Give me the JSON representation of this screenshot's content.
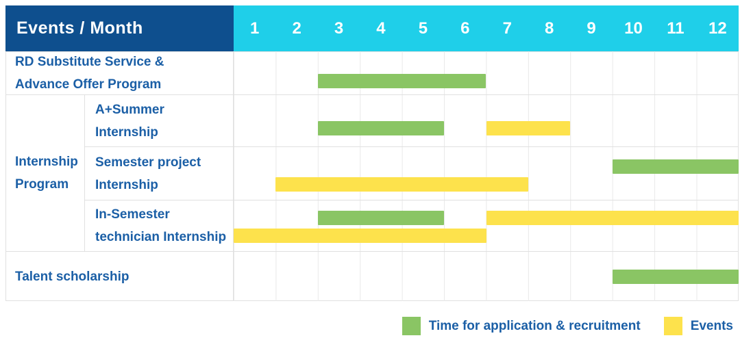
{
  "colors": {
    "header_bg": "#0e4f8e",
    "months_bg": "#1fcfe9",
    "application": "#8ac564",
    "events": "#fde24c",
    "label_text": "#1b5fa6",
    "grid_line": "#e0e0e0"
  },
  "header": {
    "label": "Events / Month",
    "months": [
      "1",
      "2",
      "3",
      "4",
      "5",
      "6",
      "7",
      "8",
      "9",
      "10",
      "11",
      "12"
    ]
  },
  "group": {
    "label_lines": [
      "Internship",
      "Program"
    ]
  },
  "rows": [
    {
      "label_lines": [
        "RD Substitute Service &",
        "Advance Offer Program"
      ]
    },
    {
      "label_lines": [
        "A+Summer",
        "Internship"
      ]
    },
    {
      "label_lines": [
        "Semester project",
        "Internship"
      ]
    },
    {
      "label_lines": [
        "In-Semester",
        "technician Internship"
      ]
    },
    {
      "label_lines": [
        "Talent scholarship"
      ]
    }
  ],
  "legend": [
    {
      "label": "Time for application & recruitment",
      "color_key": "application"
    },
    {
      "label": "Events",
      "color_key": "events"
    }
  ],
  "chart_data": {
    "type": "bar",
    "subtype": "gantt-timeline",
    "title": "Events / Month",
    "xlabel": "Month",
    "x_ticks": [
      1,
      2,
      3,
      4,
      5,
      6,
      7,
      8,
      9,
      10,
      11,
      12
    ],
    "x_range": [
      1,
      12
    ],
    "legend_entries": [
      "Time for application & recruitment",
      "Events"
    ],
    "rows": [
      {
        "group": "",
        "label": "RD Substitute Service & Advance Offer Program",
        "bars": [
          {
            "category": "application",
            "series": "Time for application & recruitment",
            "start_month": 3,
            "end_month": 6,
            "line": 0
          }
        ]
      },
      {
        "group": "Internship Program",
        "label": "A+Summer Internship",
        "bars": [
          {
            "category": "application",
            "series": "Time for application & recruitment",
            "start_month": 3,
            "end_month": 5,
            "line": 0
          },
          {
            "category": "events",
            "series": "Events",
            "start_month": 7,
            "end_month": 8,
            "line": 0
          }
        ]
      },
      {
        "group": "Internship Program",
        "label": "Semester project Internship",
        "bars": [
          {
            "category": "application",
            "series": "Time for application & recruitment",
            "start_month": 10,
            "end_month": 12,
            "line": 0
          },
          {
            "category": "events",
            "series": "Events",
            "start_month": 2,
            "end_month": 7,
            "line": 1
          }
        ]
      },
      {
        "group": "Internship Program",
        "label": "In-Semester technician Internship",
        "bars": [
          {
            "category": "application",
            "series": "Time for application & recruitment",
            "start_month": 3,
            "end_month": 5,
            "line": 0
          },
          {
            "category": "events",
            "series": "Events",
            "start_month": 7,
            "end_month": 12,
            "line": 0
          },
          {
            "category": "events",
            "series": "Events",
            "start_month": 1,
            "end_month": 6,
            "line": 1
          }
        ]
      },
      {
        "group": "",
        "label": "Talent scholarship",
        "bars": [
          {
            "category": "application",
            "series": "Time for application & recruitment",
            "start_month": 10,
            "end_month": 12,
            "line": 0
          }
        ]
      }
    ]
  }
}
